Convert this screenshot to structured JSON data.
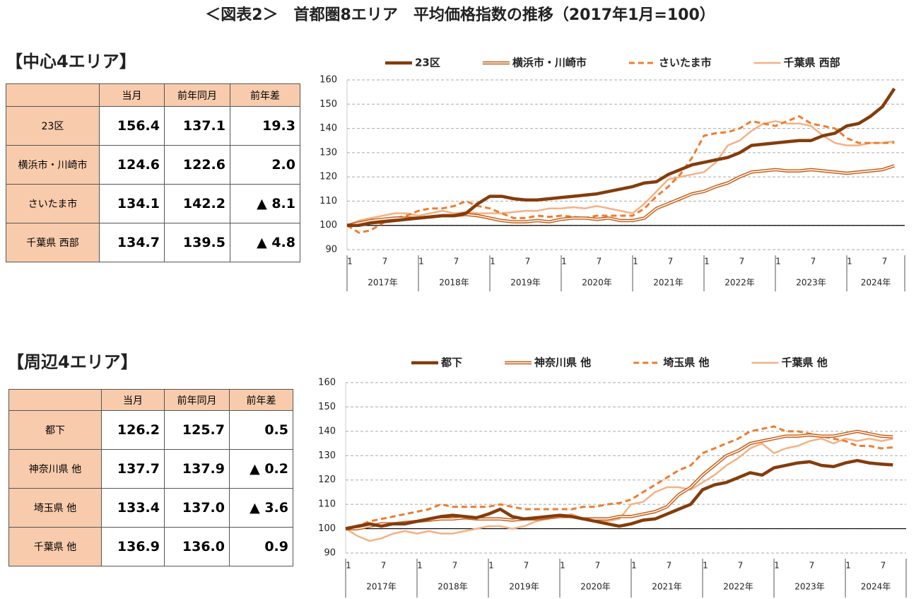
{
  "title": "＜図表2＞　首都圏8エリア　平均価格指数の推移（2017年1月=100）",
  "sections": [
    {
      "heading": "【中心4エリア】",
      "table": {
        "columns": [
          "当月",
          "前年同月",
          "前年差"
        ],
        "rows": [
          [
            "23区",
            "156.4",
            "137.1",
            "19.3"
          ],
          [
            "横浜市・川崎市",
            "124.6",
            "122.6",
            "2.0"
          ],
          [
            "さいたま市",
            "134.1",
            "142.2",
            "▲ 8.1"
          ],
          [
            "千葉県 西部",
            "134.7",
            "139.5",
            "▲ 4.8"
          ]
        ]
      }
    },
    {
      "heading": "【周辺4エリア】",
      "table": {
        "columns": [
          "当月",
          "前年同月",
          "前年差"
        ],
        "rows": [
          [
            "都下",
            "126.2",
            "125.7",
            "0.5"
          ],
          [
            "神奈川県 他",
            "137.7",
            "137.9",
            "▲ 0.2"
          ],
          [
            "埼玉県 他",
            "133.4",
            "137.0",
            "▲ 3.6"
          ],
          [
            "千葉県 他",
            "136.9",
            "136.0",
            "0.9"
          ]
        ]
      }
    }
  ],
  "chart_data": [
    {
      "type": "line",
      "categories": [
        "1",
        null,
        null,
        "7",
        null,
        null,
        "1",
        null,
        null,
        "7",
        null,
        null,
        "1",
        null,
        null,
        "7",
        null,
        null,
        "1",
        null,
        null,
        "7",
        null,
        null,
        "1",
        null,
        null,
        "7",
        null,
        null,
        "1",
        null,
        null,
        "7",
        null,
        null,
        "1",
        null,
        null,
        "7",
        null,
        null,
        "1",
        null,
        null,
        "7",
        null
      ],
      "x_groups": [
        "2017年",
        "2018年",
        "2019年",
        "2020年",
        "2021年",
        "2022年",
        "2023年",
        "2024年"
      ],
      "ylim": [
        90,
        160
      ],
      "yticks": [
        90,
        100,
        110,
        120,
        130,
        140,
        150,
        160
      ],
      "grid": true,
      "baseline": 100,
      "series": [
        {
          "name": "23区",
          "color": "#843c0c",
          "style": "thick",
          "values": [
            100,
            100,
            101,
            101.5,
            102,
            102.5,
            103,
            103.5,
            104,
            104,
            105,
            109,
            112,
            112,
            111,
            110.5,
            110.5,
            111,
            111.5,
            112,
            112.5,
            113,
            114,
            115,
            116,
            117.5,
            118,
            121,
            123,
            125,
            126,
            127,
            128,
            130,
            133,
            133.5,
            134,
            134.5,
            135,
            135,
            137,
            138,
            141,
            142,
            145,
            149,
            156.4
          ]
        },
        {
          "name": "横浜市・川崎市",
          "color": "#c55a11",
          "style": "double",
          "values": [
            100,
            101,
            102,
            102.5,
            103,
            103,
            103,
            103.5,
            104,
            104,
            104.5,
            104,
            103,
            102,
            101.5,
            101.5,
            102,
            101.5,
            102.5,
            103,
            103,
            102.5,
            103,
            102,
            102,
            103,
            107,
            109,
            111,
            113,
            114,
            116,
            117.5,
            120,
            122,
            122.5,
            123,
            122.5,
            122.5,
            123,
            122.5,
            122,
            121.5,
            122,
            122.5,
            123,
            124.6
          ]
        },
        {
          "name": "さいたま市",
          "color": "#ed7d31",
          "style": "dashed",
          "values": [
            100,
            97,
            98,
            101,
            103,
            104,
            106,
            107,
            107,
            108,
            110,
            108,
            107,
            105,
            103,
            103,
            104,
            103.5,
            104,
            103.5,
            103,
            104,
            104,
            104,
            104,
            107,
            112,
            116,
            121,
            128,
            137,
            138,
            138.5,
            140,
            143,
            142,
            141,
            143,
            145,
            142,
            141,
            140,
            136,
            134,
            134,
            134,
            134.1
          ]
        },
        {
          "name": "千葉県 西部",
          "color": "#f4b183",
          "style": "solid",
          "values": [
            100,
            102,
            103,
            104,
            105,
            105,
            104,
            105,
            106,
            105,
            105.5,
            105,
            105,
            105,
            105.5,
            106,
            106,
            107,
            107,
            107.5,
            107,
            108,
            107,
            106,
            105,
            109,
            114,
            119,
            120,
            121,
            122,
            126,
            133,
            135,
            139,
            142,
            143,
            142,
            142,
            141,
            137,
            134,
            133,
            133,
            134,
            134,
            134.7
          ]
        }
      ]
    },
    {
      "type": "line",
      "categories": [
        "1",
        null,
        null,
        "7",
        null,
        null,
        "1",
        null,
        null,
        "7",
        null,
        null,
        "1",
        null,
        null,
        "7",
        null,
        null,
        "1",
        null,
        null,
        "7",
        null,
        null,
        "1",
        null,
        null,
        "7",
        null,
        null,
        "1",
        null,
        null,
        "7",
        null,
        null,
        "1",
        null,
        null,
        "7",
        null,
        null,
        "1",
        null,
        null,
        "7",
        null
      ],
      "x_groups": [
        "2017年",
        "2018年",
        "2019年",
        "2020年",
        "2021年",
        "2022年",
        "2023年",
        "2024年"
      ],
      "ylim": [
        90,
        160
      ],
      "yticks": [
        90,
        100,
        110,
        120,
        130,
        140,
        150,
        160
      ],
      "grid": true,
      "baseline": 100,
      "series": [
        {
          "name": "都下",
          "color": "#843c0c",
          "style": "thick",
          "values": [
            100,
            101,
            102,
            101,
            102,
            102,
            103,
            104,
            105,
            105.5,
            105,
            104.5,
            106,
            108,
            105,
            104,
            104.5,
            105,
            105.5,
            105,
            104,
            103,
            102,
            101,
            102,
            103.5,
            104,
            106,
            108,
            110,
            116,
            118,
            119,
            121,
            123,
            122,
            125,
            126,
            127,
            127.5,
            126,
            125.5,
            127,
            128,
            127,
            126.5,
            126.2
          ]
        },
        {
          "name": "神奈川県 他",
          "color": "#c55a11",
          "style": "double",
          "values": [
            100,
            100,
            101,
            102,
            102,
            102.5,
            103,
            103.5,
            104,
            104,
            104.5,
            104,
            104,
            104,
            103.5,
            104,
            104,
            104.5,
            105,
            105,
            104,
            104,
            104,
            105,
            105,
            106,
            107,
            109,
            114,
            117,
            122,
            126,
            130,
            132,
            135,
            136,
            137,
            138,
            138,
            138.5,
            138,
            138,
            139,
            140,
            139,
            138,
            137.7
          ]
        },
        {
          "name": "埼玉県 他",
          "color": "#ed7d31",
          "style": "dashed",
          "values": [
            100,
            101,
            103,
            104,
            105,
            106,
            107,
            108,
            110,
            109,
            109,
            109,
            109,
            110,
            109,
            108,
            108,
            108,
            108,
            108,
            109,
            109,
            110,
            110.5,
            112,
            115,
            118,
            121,
            124,
            126,
            131,
            133,
            135,
            137,
            140,
            141,
            142,
            140,
            140,
            139,
            138,
            137,
            136,
            134,
            134,
            133,
            133.4
          ]
        },
        {
          "name": "千葉県 他",
          "color": "#f4b183",
          "style": "solid",
          "values": [
            100,
            97,
            95,
            96,
            98,
            99,
            98,
            99,
            98,
            98,
            99,
            100,
            101,
            101,
            100,
            101,
            103,
            104,
            105,
            106,
            104,
            103,
            103,
            104,
            110,
            111,
            115,
            117,
            117,
            116,
            119,
            122,
            126,
            129,
            133,
            135,
            131,
            133,
            134,
            136,
            137,
            135,
            137,
            136,
            137,
            136,
            136.9
          ]
        }
      ]
    }
  ]
}
